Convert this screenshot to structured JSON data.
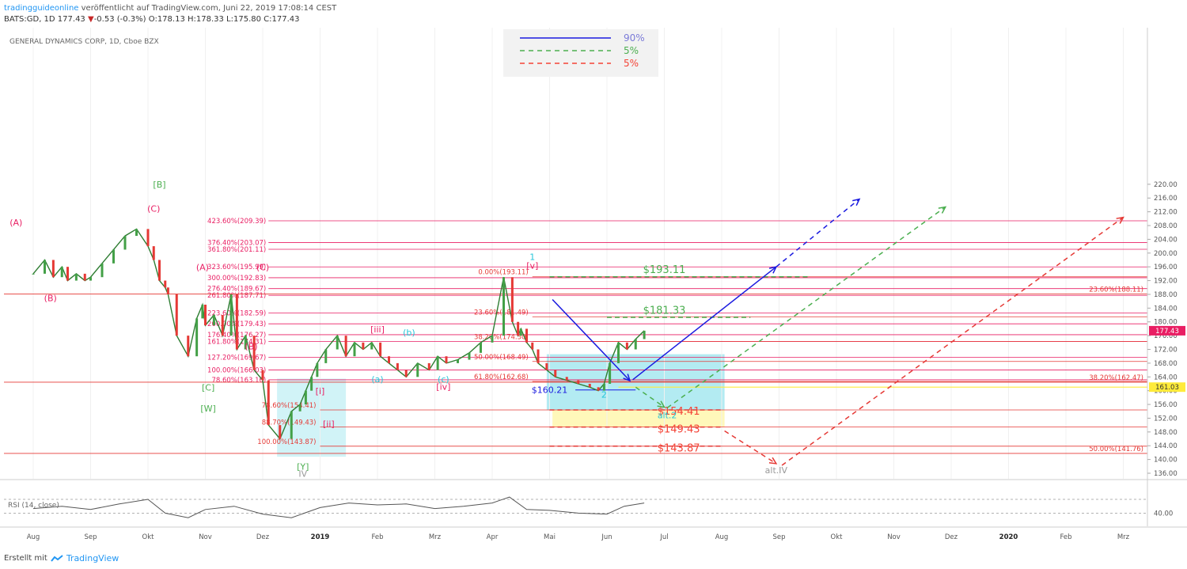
{
  "header": {
    "brand": "tradingguideonline",
    "published": "veröffentlicht auf TradingView.com, Juni 22, 2019 17:08:14 CEST",
    "symbol": "BATS:GD, 1D 177.43",
    "change_arrow": "▼",
    "change": "-0.53 (-0.3%)",
    "ohlc": "O:178.13 H:178.33 L:175.80 C:177.43"
  },
  "footer": {
    "created_with": "Erstellt mit",
    "logo_text": "TradingView"
  },
  "chart_data": {
    "type": "candlestick",
    "title": "GENERAL DYNAMICS CORP, 1D, Cboe BZX",
    "ylim": [
      134,
      222
    ],
    "y_ticks": [
      136,
      140,
      144,
      148,
      152,
      156,
      160,
      164,
      168,
      172,
      176,
      180,
      184,
      188,
      192,
      196,
      200,
      204,
      208,
      212,
      216,
      220
    ],
    "y_tick_labels": [
      "136.00",
      "140.00",
      "144.00",
      "148.00",
      "152.00",
      "156.00",
      "160.00",
      "164.00",
      "168.00",
      "172.00",
      "176.00",
      "180.00",
      "184.00",
      "188.00",
      "192.00",
      "196.00",
      "200.00",
      "204.00",
      "208.00",
      "212.00",
      "216.00",
      "220.00"
    ],
    "x_labels": [
      "Aug",
      "Sep",
      "Okt",
      "Nov",
      "Dez",
      "2019",
      "Feb",
      "Mrz",
      "Apr",
      "Mai",
      "Jun",
      "Jul",
      "Aug",
      "Sep",
      "Okt",
      "Nov",
      "Dez",
      "2020",
      "Feb",
      "Mrz"
    ],
    "x_label_months": [
      0,
      1,
      2,
      3,
      4,
      5,
      6,
      7,
      8,
      9,
      10,
      11,
      12,
      13,
      14,
      15,
      16,
      17,
      18,
      19
    ],
    "price_series": {
      "month_index": [
        0.0,
        0.2,
        0.35,
        0.5,
        0.6,
        0.75,
        0.9,
        1.0,
        1.2,
        1.4,
        1.6,
        1.8,
        2.0,
        2.1,
        2.2,
        2.3,
        2.35,
        2.5,
        2.7,
        2.85,
        2.95,
        3.0,
        3.15,
        3.3,
        3.45,
        3.55,
        3.7,
        3.85,
        4.0,
        4.1,
        4.3,
        4.5,
        4.65,
        4.75,
        4.85,
        4.95,
        5.1,
        5.3,
        5.45,
        5.6,
        5.75,
        5.9,
        6.05,
        6.2,
        6.35,
        6.5,
        6.7,
        6.9,
        7.05,
        7.2,
        7.4,
        7.6,
        7.8,
        8.0,
        8.2,
        8.35,
        8.45,
        8.5,
        8.6,
        8.7,
        8.8,
        8.95,
        9.1,
        9.3,
        9.5,
        9.7,
        9.85,
        9.95,
        10.05,
        10.2,
        10.35,
        10.5,
        10.65
      ],
      "close": [
        194,
        198,
        193,
        196,
        192,
        194,
        192,
        193,
        197,
        201,
        205,
        207,
        202,
        198,
        192,
        190,
        188,
        176,
        170,
        181,
        185,
        179,
        182,
        176,
        188,
        172,
        176,
        166,
        163,
        150,
        146,
        154,
        156,
        160,
        164,
        168,
        172,
        176,
        170,
        174,
        172,
        174,
        170,
        168,
        166,
        164,
        168,
        166,
        170,
        168,
        169,
        171,
        174,
        176,
        193,
        180,
        176,
        178,
        174,
        172,
        168,
        166,
        164,
        163,
        162,
        161,
        160,
        162,
        168,
        174,
        172,
        175,
        177.43
      ]
    },
    "rsi": {
      "label": "RSI (14, close)",
      "ticks": [
        40,
        70
      ],
      "tick_label": "40.00",
      "month_index": [
        0,
        0.5,
        1,
        1.5,
        2,
        2.3,
        2.7,
        3,
        3.5,
        4,
        4.5,
        5,
        5.5,
        6,
        6.5,
        7,
        7.5,
        8,
        8.3,
        8.6,
        9,
        9.5,
        10,
        10.3,
        10.65
      ],
      "values": [
        50,
        55,
        48,
        60,
        70,
        40,
        30,
        48,
        55,
        38,
        30,
        52,
        62,
        58,
        60,
        50,
        55,
        62,
        75,
        48,
        46,
        40,
        38,
        55,
        62
      ]
    },
    "current_price": {
      "label": "177.43",
      "value": 177.43,
      "color": "#e91e63"
    },
    "marker_price": {
      "label": "161.03",
      "value": 161.03,
      "color": "#ffeb3b"
    },
    "legend": {
      "items": [
        {
          "label": "90%",
          "color": "#1a1adf",
          "dash": false
        },
        {
          "label": "5%",
          "color": "#4caf50",
          "dash": true
        },
        {
          "label": "5%",
          "color": "#f44336",
          "dash": true
        }
      ]
    },
    "fib_levels_left": [
      {
        "label": "423.60%(209.39)",
        "value": 209.39
      },
      {
        "label": "376.40%(203.07)",
        "value": 203.07
      },
      {
        "label": "361.80%(201.11)",
        "value": 201.11
      },
      {
        "label": "323.60%(195.99)",
        "value": 195.99
      },
      {
        "label": "300.00%(192.83)",
        "value": 192.83
      },
      {
        "label": "276.40%(189.67)",
        "value": 189.67
      },
      {
        "label": "261.80%(187.71)",
        "value": 187.71
      },
      {
        "label": "223.60%(182.59)",
        "value": 182.59
      },
      {
        "label": "200.00%(179.43)",
        "value": 179.43
      },
      {
        "label": "176.40%(176.27)",
        "value": 176.27
      },
      {
        "label": "161.80%(174.31)",
        "value": 174.31
      },
      {
        "label": "127.20%(169.67)",
        "value": 169.67
      },
      {
        "label": "100.00%(166.03)",
        "value": 166.03
      },
      {
        "label": "78.60%(163.16)",
        "value": 163.16
      }
    ],
    "fib_levels_mid": [
      {
        "label": "0.00%(193.11)",
        "value": 193.11
      },
      {
        "label": "23.60%(181.49)",
        "value": 181.49
      },
      {
        "label": "38.20%(174.30)",
        "value": 174.3
      },
      {
        "label": "50.00%(168.49)",
        "value": 168.49
      },
      {
        "label": "61.80%(162.68)",
        "value": 162.68
      },
      {
        "label": "78.60%(154.41)",
        "value": 154.41
      },
      {
        "label": "88.70%(149.43)",
        "value": 149.43
      },
      {
        "label": "100.00%(143.87)",
        "value": 143.87
      }
    ],
    "fib_levels_right": [
      {
        "label": "23.60%(188.11)",
        "value": 188.11
      },
      {
        "label": "38.20%(162.47)",
        "value": 162.47
      },
      {
        "label": "50.00%(141.76)",
        "value": 141.76
      }
    ],
    "targets": [
      {
        "label": "$193.11",
        "value": 193.11,
        "color": "#4caf50"
      },
      {
        "label": "$181.33",
        "value": 181.33,
        "color": "#4caf50"
      },
      {
        "label": "$160.21",
        "value": 160.21,
        "color": "#1a1adf"
      },
      {
        "label": "$154.41",
        "value": 154.41,
        "color": "#f44336"
      },
      {
        "label": "$149.43",
        "value": 149.43,
        "color": "#f44336"
      },
      {
        "label": "$143.87",
        "value": 143.87,
        "color": "#f44336"
      }
    ],
    "wave_labels": [
      {
        "label": "(A)",
        "color": "#e91e63",
        "month": -0.3,
        "price": 208
      },
      {
        "label": "(C)",
        "color": "#e91e63",
        "month": 2.1,
        "price": 212
      },
      {
        "label": "[B]",
        "color": "#4caf50",
        "month": 2.2,
        "price": 219
      },
      {
        "label": "(A)",
        "color": "#e91e63",
        "month": 2.95,
        "price": 195
      },
      {
        "label": "(B)",
        "color": "#e91e63",
        "month": 0.3,
        "price": 186
      },
      {
        "label": "(C)",
        "color": "#e91e63",
        "month": 4.0,
        "price": 195
      },
      {
        "label": "(B)",
        "color": "#e91e63",
        "month": 3.8,
        "price": 172
      },
      {
        "label": "[C]",
        "color": "#4caf50",
        "month": 3.05,
        "price": 160
      },
      {
        "label": "[W]",
        "color": "#4caf50",
        "month": 3.05,
        "price": 154
      },
      {
        "label": "[Y]",
        "color": "#4caf50",
        "month": 4.7,
        "price": 137
      },
      {
        "label": "IV",
        "color": "#999999",
        "month": 4.7,
        "price": 135
      },
      {
        "label": "1",
        "color": "#26c6da",
        "month": 8.7,
        "price": 198
      },
      {
        "label": "[v]",
        "color": "#e91e63",
        "month": 8.7,
        "price": 195.5
      },
      {
        "label": "[iii]",
        "color": "#e91e63",
        "month": 6.0,
        "price": 177
      },
      {
        "label": "(b)",
        "color": "#26c6da",
        "month": 6.55,
        "price": 176
      },
      {
        "label": "(a)",
        "color": "#26c6da",
        "month": 6.0,
        "price": 162.5
      },
      {
        "label": "(c)",
        "color": "#26c6da",
        "month": 7.15,
        "price": 162.5
      },
      {
        "label": "[iv]",
        "color": "#e91e63",
        "month": 7.15,
        "price": 160.3
      },
      {
        "label": "[i]",
        "color": "#e91e63",
        "month": 5.0,
        "price": 159
      },
      {
        "label": "[ii]",
        "color": "#e91e63",
        "month": 5.15,
        "price": 149.5
      },
      {
        "label": "2",
        "color": "#26c6da",
        "month": 9.95,
        "price": 158
      },
      {
        "label": "alt.2",
        "color": "#26c6da",
        "month": 11.05,
        "price": 152
      },
      {
        "label": "alt.IV",
        "color": "#999999",
        "month": 12.95,
        "price": 136
      }
    ]
  }
}
